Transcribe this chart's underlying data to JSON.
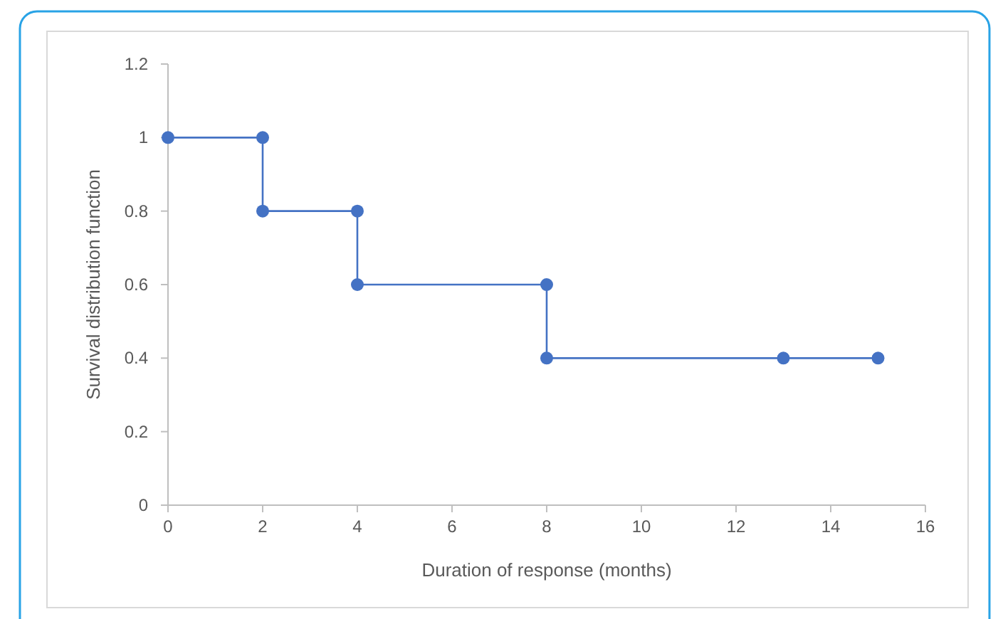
{
  "chart_data": {
    "type": "line",
    "xlabel": "Duration of response (months)",
    "ylabel": "Survival distribution function",
    "x": [
      0,
      2,
      2,
      4,
      4,
      8,
      8,
      13,
      15
    ],
    "series": [
      {
        "color": "#4472c4",
        "values": [
          1,
          1,
          0.8,
          0.8,
          0.6,
          0.6,
          0.4,
          0.4,
          0.4
        ]
      }
    ],
    "xlim": [
      0,
      16
    ],
    "xticks": [
      0,
      2,
      4,
      6,
      8,
      10,
      12,
      14,
      16
    ],
    "ylim": [
      0,
      1.2
    ],
    "yticks": [
      0,
      0.2,
      0.4,
      0.6,
      0.8,
      1,
      1.2
    ],
    "marker": "circle",
    "line_style": "solid"
  }
}
